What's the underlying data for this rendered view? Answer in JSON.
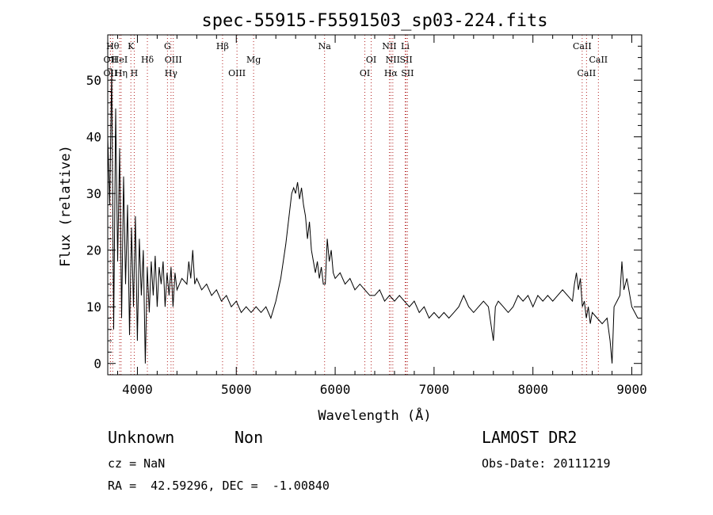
{
  "chart_data": {
    "type": "line",
    "title": "spec-55915-F5591503_sp03-224.fits",
    "xlabel": "Wavelength (Å)",
    "ylabel": "Flux (relative)",
    "xlim": [
      3700,
      9100
    ],
    "ylim": [
      -2,
      58
    ],
    "xticks": [
      4000,
      5000,
      6000,
      7000,
      8000,
      9000
    ],
    "yticks": [
      0,
      10,
      20,
      30,
      40,
      50
    ],
    "grid": false,
    "series": [
      {
        "values": [
          [
            3700,
            40
          ],
          [
            3720,
            28
          ],
          [
            3740,
            52
          ],
          [
            3760,
            6
          ],
          [
            3780,
            45
          ],
          [
            3800,
            18
          ],
          [
            3820,
            38
          ],
          [
            3840,
            8
          ],
          [
            3860,
            33
          ],
          [
            3880,
            14
          ],
          [
            3900,
            28
          ],
          [
            3920,
            5
          ],
          [
            3940,
            24
          ],
          [
            3960,
            10
          ],
          [
            3980,
            26
          ],
          [
            4000,
            4
          ],
          [
            4020,
            22
          ],
          [
            4040,
            12
          ],
          [
            4060,
            20
          ],
          [
            4080,
            0
          ],
          [
            4100,
            17
          ],
          [
            4120,
            9
          ],
          [
            4140,
            18
          ],
          [
            4160,
            12
          ],
          [
            4180,
            19
          ],
          [
            4200,
            10
          ],
          [
            4220,
            17
          ],
          [
            4240,
            14
          ],
          [
            4260,
            18
          ],
          [
            4280,
            10
          ],
          [
            4300,
            16
          ],
          [
            4320,
            12
          ],
          [
            4340,
            17
          ],
          [
            4360,
            10
          ],
          [
            4380,
            16
          ],
          [
            4400,
            13
          ],
          [
            4450,
            15
          ],
          [
            4500,
            14
          ],
          [
            4520,
            18
          ],
          [
            4540,
            15
          ],
          [
            4560,
            20
          ],
          [
            4580,
            14
          ],
          [
            4600,
            15
          ],
          [
            4650,
            13
          ],
          [
            4700,
            14
          ],
          [
            4750,
            12
          ],
          [
            4800,
            13
          ],
          [
            4850,
            11
          ],
          [
            4900,
            12
          ],
          [
            4950,
            10
          ],
          [
            5000,
            11
          ],
          [
            5050,
            9
          ],
          [
            5100,
            10
          ],
          [
            5150,
            9
          ],
          [
            5200,
            10
          ],
          [
            5250,
            9
          ],
          [
            5300,
            10
          ],
          [
            5350,
            8
          ],
          [
            5400,
            11
          ],
          [
            5450,
            15
          ],
          [
            5500,
            21
          ],
          [
            5520,
            24
          ],
          [
            5540,
            27
          ],
          [
            5560,
            30
          ],
          [
            5580,
            31
          ],
          [
            5600,
            30
          ],
          [
            5620,
            32
          ],
          [
            5640,
            29
          ],
          [
            5660,
            31
          ],
          [
            5680,
            28
          ],
          [
            5700,
            26
          ],
          [
            5720,
            22
          ],
          [
            5740,
            25
          ],
          [
            5760,
            20
          ],
          [
            5780,
            18
          ],
          [
            5800,
            16
          ],
          [
            5820,
            18
          ],
          [
            5840,
            15
          ],
          [
            5860,
            17
          ],
          [
            5880,
            14
          ],
          [
            5900,
            14
          ],
          [
            5920,
            22
          ],
          [
            5940,
            18
          ],
          [
            5960,
            20
          ],
          [
            5980,
            16
          ],
          [
            6000,
            15
          ],
          [
            6050,
            16
          ],
          [
            6100,
            14
          ],
          [
            6150,
            15
          ],
          [
            6200,
            13
          ],
          [
            6250,
            14
          ],
          [
            6300,
            13
          ],
          [
            6350,
            12
          ],
          [
            6400,
            12
          ],
          [
            6450,
            13
          ],
          [
            6500,
            11
          ],
          [
            6550,
            12
          ],
          [
            6600,
            11
          ],
          [
            6650,
            12
          ],
          [
            6700,
            11
          ],
          [
            6750,
            10
          ],
          [
            6800,
            11
          ],
          [
            6850,
            9
          ],
          [
            6900,
            10
          ],
          [
            6950,
            8
          ],
          [
            7000,
            9
          ],
          [
            7050,
            8
          ],
          [
            7100,
            9
          ],
          [
            7150,
            8
          ],
          [
            7200,
            9
          ],
          [
            7250,
            10
          ],
          [
            7300,
            12
          ],
          [
            7350,
            10
          ],
          [
            7400,
            9
          ],
          [
            7450,
            10
          ],
          [
            7500,
            11
          ],
          [
            7550,
            10
          ],
          [
            7600,
            4
          ],
          [
            7620,
            10
          ],
          [
            7650,
            11
          ],
          [
            7700,
            10
          ],
          [
            7750,
            9
          ],
          [
            7800,
            10
          ],
          [
            7850,
            12
          ],
          [
            7900,
            11
          ],
          [
            7950,
            12
          ],
          [
            8000,
            10
          ],
          [
            8050,
            12
          ],
          [
            8100,
            11
          ],
          [
            8150,
            12
          ],
          [
            8200,
            11
          ],
          [
            8250,
            12
          ],
          [
            8300,
            13
          ],
          [
            8350,
            12
          ],
          [
            8400,
            11
          ],
          [
            8420,
            14
          ],
          [
            8440,
            16
          ],
          [
            8460,
            13
          ],
          [
            8480,
            15
          ],
          [
            8500,
            10
          ],
          [
            8520,
            11
          ],
          [
            8540,
            8
          ],
          [
            8560,
            10
          ],
          [
            8580,
            7
          ],
          [
            8600,
            9
          ],
          [
            8650,
            8
          ],
          [
            8700,
            7
          ],
          [
            8750,
            8
          ],
          [
            8780,
            4
          ],
          [
            8800,
            0
          ],
          [
            8820,
            10
          ],
          [
            8850,
            11
          ],
          [
            8880,
            12
          ],
          [
            8900,
            18
          ],
          [
            8920,
            13
          ],
          [
            8950,
            15
          ],
          [
            8980,
            12
          ],
          [
            9000,
            10
          ],
          [
            9030,
            9
          ],
          [
            9060,
            8
          ]
        ]
      }
    ],
    "line_markers": [
      {
        "wavelength": 3750,
        "label": "Hθ",
        "row": 0,
        "color": "#b22222"
      },
      {
        "wavelength": 3934,
        "label": "K",
        "row": 0,
        "color": "#b22222"
      },
      {
        "wavelength": 3727,
        "label": "OII",
        "row": 1,
        "color": "#b22222"
      },
      {
        "wavelength": 3820,
        "label": "HeI",
        "row": 1,
        "color": "#b22222"
      },
      {
        "wavelength": 4101,
        "label": "Hδ",
        "row": 1,
        "color": "#b22222"
      },
      {
        "wavelength": 3727,
        "label": "OII",
        "row": 2,
        "color": "#b22222"
      },
      {
        "wavelength": 3835,
        "label": "Hη",
        "row": 2,
        "color": "#b22222"
      },
      {
        "wavelength": 3968,
        "label": "H",
        "row": 2,
        "color": "#b22222"
      },
      {
        "wavelength": 4304,
        "label": "G",
        "row": 0,
        "color": "#b22222"
      },
      {
        "wavelength": 4363,
        "label": "OIII",
        "row": 1,
        "color": "#b22222"
      },
      {
        "wavelength": 4340,
        "label": "Hγ",
        "row": 2,
        "color": "#b22222"
      },
      {
        "wavelength": 4861,
        "label": "Hβ",
        "row": 0,
        "color": "#b22222"
      },
      {
        "wavelength": 5175,
        "label": "Mg",
        "row": 1,
        "color": "#b22222"
      },
      {
        "wavelength": 5007,
        "label": "OIII",
        "row": 2,
        "color": "#b22222"
      },
      {
        "wavelength": 5893,
        "label": "Na",
        "row": 0,
        "color": "#b22222"
      },
      {
        "wavelength": 6364,
        "label": "OI",
        "row": 1,
        "color": "#b22222"
      },
      {
        "wavelength": 6300,
        "label": "OI",
        "row": 2,
        "color": "#b22222"
      },
      {
        "wavelength": 6548,
        "label": "NII",
        "row": 0,
        "color": "#b22222"
      },
      {
        "wavelength": 6708,
        "label": "Li",
        "row": 0,
        "color": "#b22222"
      },
      {
        "wavelength": 6583,
        "label": "NII",
        "row": 1,
        "color": "#b22222"
      },
      {
        "wavelength": 6717,
        "label": "SII",
        "row": 1,
        "color": "#b22222"
      },
      {
        "wavelength": 6563,
        "label": "Hα",
        "row": 2,
        "color": "#b22222"
      },
      {
        "wavelength": 6731,
        "label": "SII",
        "row": 2,
        "color": "#b22222"
      },
      {
        "wavelength": 8498,
        "label": "CaII",
        "row": 0,
        "color": "#b22222"
      },
      {
        "wavelength": 8662,
        "label": "CaII",
        "row": 1,
        "color": "#b22222"
      },
      {
        "wavelength": 8542,
        "label": "CaII",
        "row": 2,
        "color": "#b22222"
      }
    ]
  },
  "footer": {
    "object_class": "Unknown",
    "subclass": "Non",
    "survey": "LAMOST DR2",
    "redshift": "cz = NaN",
    "obs_date": "Obs-Date: 20111219",
    "coords": "RA =  42.59296, DEC =  -1.00840"
  }
}
